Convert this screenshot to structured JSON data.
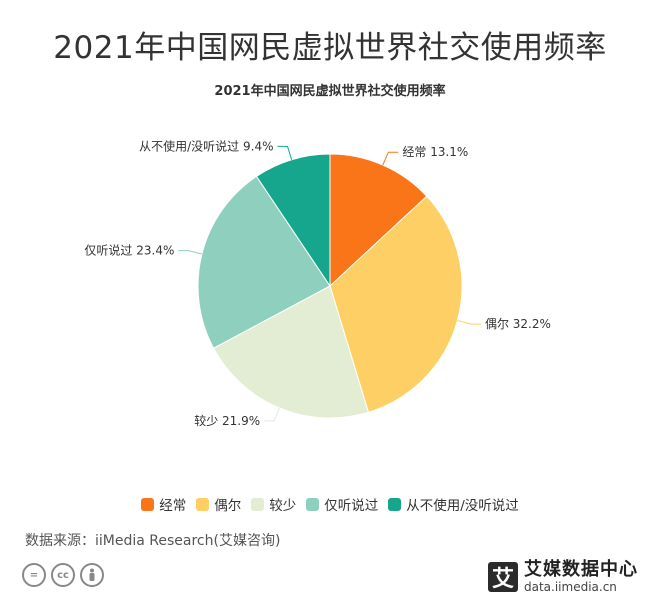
{
  "header": {
    "title": "2021年中国网民虚拟世界社交使用频率"
  },
  "chart_data": {
    "type": "pie",
    "title": "2021年中国网民虚拟世界社交使用频率",
    "slices": [
      {
        "label": "经常",
        "value": 13.1,
        "value_label": "13.1%",
        "color": "#F97518"
      },
      {
        "label": "偶尔",
        "value": 32.2,
        "value_label": "32.2%",
        "color": "#FDCF64"
      },
      {
        "label": "较少",
        "value": 21.9,
        "value_label": "21.9%",
        "color": "#E2EDD4"
      },
      {
        "label": "仅听说过",
        "value": 23.4,
        "value_label": "23.4%",
        "color": "#8ECFBD"
      },
      {
        "label": "从不使用/没听说过",
        "value": 9.4,
        "value_label": "9.4%",
        "color": "#15A68D"
      }
    ],
    "legend_position": "bottom"
  },
  "footer": {
    "source": "数据来源：iiMedia Research(艾媒咨询)",
    "brand_name": "艾媒数据中心",
    "brand_url": "data.iimedia.cn",
    "brand_mark": "艾",
    "cc_icons": [
      {
        "icon": "equals-icon",
        "text": "="
      },
      {
        "icon": "cc-icon",
        "text": "cc"
      },
      {
        "icon": "person-icon",
        "text": ""
      }
    ]
  }
}
